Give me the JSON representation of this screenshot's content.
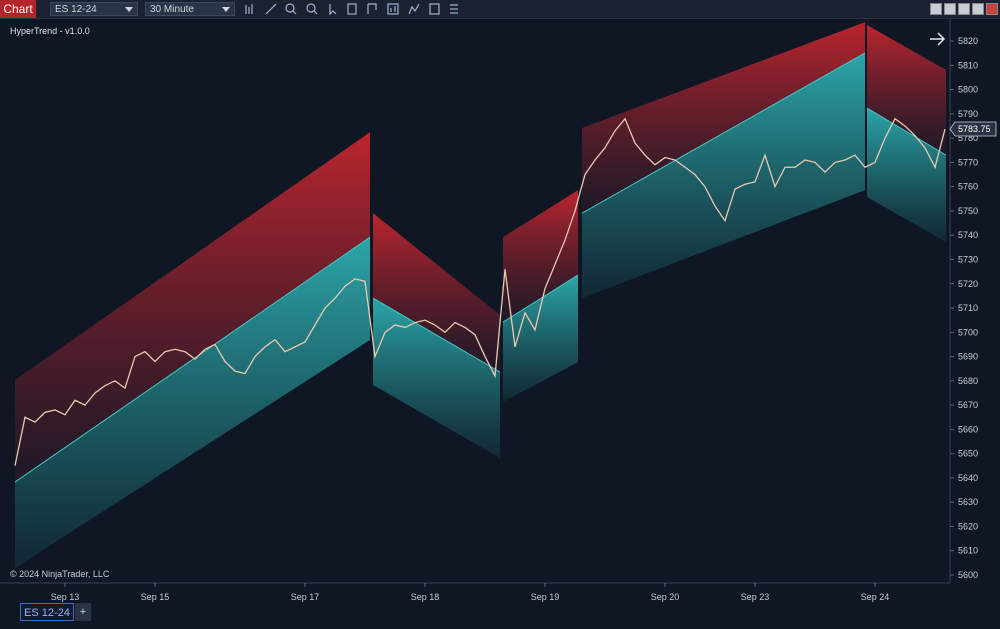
{
  "toolbar": {
    "tab": "Chart",
    "instrument": "ES 12-24",
    "interval": "30 Minute"
  },
  "indicator_label": "HyperTrend - v1.0.0",
  "copyright": "© 2024 NinjaTrader, LLC",
  "bottom_tabs": [
    "ES 12-24",
    "+"
  ],
  "chart_data": {
    "type": "line",
    "categories": [
      null,
      null,
      null,
      null,
      null,
      "Sep 13",
      null,
      null,
      null,
      null,
      null,
      null,
      null,
      null,
      "Sep 15",
      null,
      null,
      null,
      null,
      null,
      null,
      null,
      null,
      null,
      null,
      null,
      null,
      null,
      null,
      "Sep 17",
      null,
      null,
      null,
      null,
      null,
      null,
      null,
      null,
      null,
      null,
      null,
      "Sep 18",
      null,
      null,
      null,
      null,
      null,
      null,
      null,
      null,
      null,
      null,
      null,
      "Sep 19",
      null,
      null,
      null,
      null,
      null,
      null,
      null,
      null,
      null,
      null,
      null,
      "Sep 20",
      null,
      null,
      null,
      null,
      null,
      null,
      null,
      null,
      "Sep 23",
      null,
      null,
      null,
      null,
      null,
      null,
      null,
      null,
      null,
      null,
      null,
      "Sep 24",
      null,
      null,
      null,
      null,
      null,
      null,
      null
    ],
    "series": [
      {
        "color": "#e8c9b0",
        "values": [
          5645,
          5665,
          5663,
          5667,
          5668,
          5666,
          5672,
          5670,
          5675,
          5678,
          5680,
          5677,
          5690,
          5692,
          5688,
          5692,
          5693,
          5692,
          5689,
          5693,
          5695,
          5688,
          5684,
          5683,
          5690,
          5694,
          5697,
          5692,
          5694,
          5696,
          5703,
          5710,
          5714,
          5719,
          5722,
          5721,
          5690,
          5700,
          5703,
          5702,
          5704,
          5705,
          5703,
          5700,
          5704,
          5702,
          5699,
          5690,
          5682,
          5726,
          5694,
          5708,
          5701,
          5718,
          5728,
          5738,
          5750,
          5765,
          5771,
          5776,
          5783,
          5788,
          5778,
          5773,
          5769,
          5772,
          5771,
          5768,
          5765,
          5760,
          5752,
          5746,
          5759,
          5761,
          5762,
          5773,
          5760,
          5768,
          5768,
          5771,
          5770,
          5766,
          5770,
          5771,
          5773,
          5768,
          5770,
          5780,
          5788,
          5785,
          5781,
          5776,
          5768,
          5783.75
        ]
      }
    ],
    "bands": {
      "upper_color": "#c4262e",
      "lower_color": "#2fb6b8",
      "mid_color": "#3fc7c4",
      "segments": [
        {
          "x": [
            0,
            35.5
          ],
          "upper": [
            5680.3,
            5782.5
          ],
          "mid": [
            5638.3,
            5739.2
          ],
          "lower": [
            5602.9,
            5696.8
          ]
        },
        {
          "x": [
            35.8,
            48.5
          ],
          "upper": [
            5749.1,
            5707.1
          ],
          "mid": [
            5714.1,
            5683.6
          ],
          "lower": [
            5678.3,
            5648.2
          ]
        },
        {
          "x": [
            48.8,
            56.3
          ],
          "upper": [
            5739.2,
            5758.6
          ],
          "mid": [
            5704.2,
            5723.6
          ],
          "lower": [
            5671.3,
            5687.7
          ]
        },
        {
          "x": [
            56.7,
            85
          ],
          "upper": [
            5784.2,
            5827.8
          ],
          "mid": [
            5749.1,
            5815.1
          ],
          "lower": [
            5714.1,
            5758.6
          ]
        },
        {
          "x": [
            85.2,
            93.1
          ],
          "upper": [
            5826.6,
            5808.1
          ],
          "mid": [
            5792.4,
            5773.0
          ],
          "lower": [
            5755.7,
            5737.2
          ]
        }
      ]
    },
    "ylim": [
      5596.7,
      5829.5
    ],
    "yticks": [
      5600,
      5610,
      5620,
      5630,
      5640,
      5650,
      5660,
      5670,
      5680,
      5690,
      5700,
      5710,
      5720,
      5730,
      5740,
      5750,
      5760,
      5770,
      5780,
      5790,
      5800,
      5810,
      5820
    ]
  }
}
